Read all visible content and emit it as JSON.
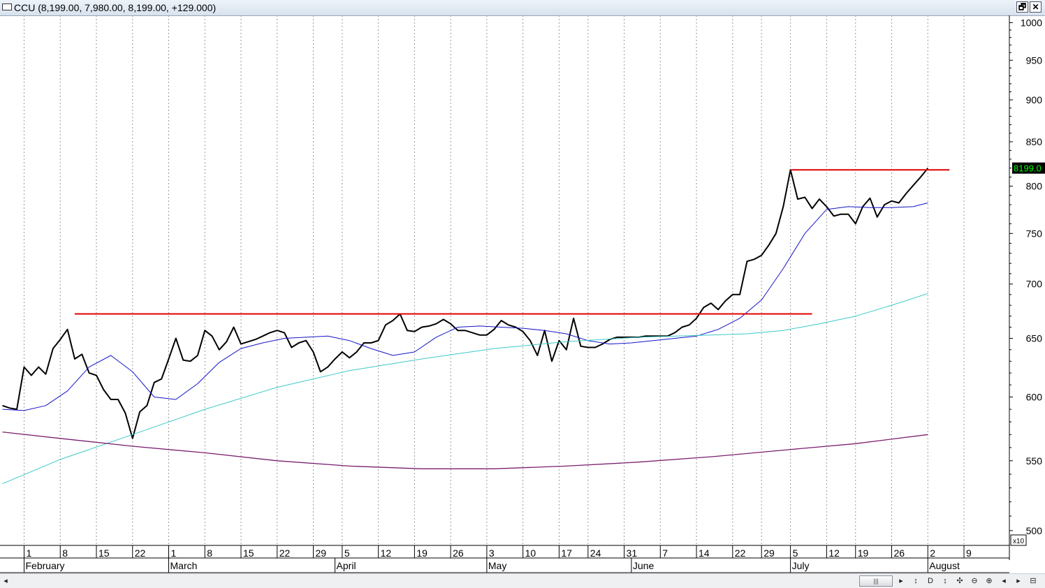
{
  "window": {
    "title": "CCU (8,199.00, 7,980.00, 8,199.00, +129.000)",
    "restore_label": "🗗",
    "close_label": "✕"
  },
  "price_label": "8199.0",
  "scale_multiplier": "x10",
  "toolbar": {
    "scroll_left": "◂",
    "thumb": "|||",
    "buttons": [
      "▸",
      "↕",
      "D",
      "↕",
      "✣",
      "⊖",
      "⊕",
      "◂",
      "▸",
      "⊟"
    ]
  },
  "colors": {
    "price": "#000000",
    "ma_short": "#1414c8",
    "ma_medium": "#3cc8c8",
    "ma_long": "#7a1f6e",
    "resistance": "#e00000",
    "price_label_bg": "#000000",
    "price_label_fg": "#00ff00"
  },
  "chart_data": {
    "type": "line",
    "title": "",
    "ylim": [
      490,
      1010
    ],
    "y_ticks": [
      500,
      550,
      600,
      650,
      700,
      750,
      800,
      850,
      900,
      950,
      1000
    ],
    "y_tick_labels": [
      "500",
      "550",
      "600",
      "650",
      "700",
      "750",
      "800",
      "850",
      "900",
      "950",
      "1000"
    ],
    "x_day_labels": [
      "1",
      "8",
      "15",
      "22",
      "1",
      "8",
      "15",
      "22",
      "29",
      "5",
      "12",
      "19",
      "26",
      "3",
      "10",
      "17",
      "24",
      "31",
      "7",
      "14",
      "22",
      "29",
      "5",
      "12",
      "19",
      "26",
      "2",
      "9"
    ],
    "x_day_index": [
      0,
      5,
      10,
      15,
      20,
      25,
      30,
      35,
      40,
      44,
      49,
      54,
      59,
      64,
      69,
      74,
      78,
      83,
      88,
      93,
      98,
      102,
      106,
      111,
      115,
      120,
      125,
      130
    ],
    "month_labels": [
      "February",
      "March",
      "April",
      "May",
      "June",
      "July",
      "August"
    ],
    "month_index": [
      0,
      20,
      43,
      64,
      84,
      106,
      125
    ],
    "x_index_range": [
      -3,
      136
    ],
    "series": [
      {
        "key": "price",
        "x": [
          -3,
          -2,
          -1,
          0,
          1,
          2,
          3,
          4,
          5,
          6,
          7,
          8,
          9,
          10,
          11,
          12,
          13,
          14,
          15,
          16,
          17,
          18,
          19,
          20,
          21,
          22,
          23,
          24,
          25,
          26,
          27,
          28,
          29,
          30,
          31,
          32,
          33,
          34,
          35,
          36,
          37,
          38,
          39,
          40,
          41,
          42,
          43,
          44,
          45,
          46,
          47,
          48,
          49,
          50,
          51,
          52,
          53,
          54,
          55,
          56,
          57,
          58,
          59,
          60,
          61,
          62,
          63,
          64,
          65,
          66,
          67,
          68,
          69,
          70,
          71,
          72,
          73,
          74,
          75,
          76,
          77,
          78,
          79,
          80,
          81,
          82,
          83,
          84,
          85,
          86,
          87,
          88,
          89,
          90,
          91,
          92,
          93,
          94,
          95,
          96,
          97,
          98,
          99,
          100,
          101,
          102,
          103,
          104,
          105,
          106,
          107,
          108,
          109,
          110,
          111,
          112,
          113,
          114,
          115,
          116,
          117,
          118,
          119,
          120,
          121,
          122,
          123,
          124,
          125
        ],
        "values": [
          593,
          591,
          590,
          625,
          618,
          625,
          619,
          641,
          649,
          658,
          632,
          636,
          620,
          618,
          606,
          598,
          598,
          587,
          567,
          588,
          593,
          612,
          615,
          632,
          650,
          631,
          630,
          635,
          657,
          652,
          640,
          647,
          660,
          645,
          647,
          649,
          652,
          655,
          657,
          655,
          642,
          646,
          648,
          638,
          621,
          625,
          632,
          638,
          633,
          638,
          646,
          646,
          648,
          662,
          666,
          672,
          657,
          656,
          660,
          661,
          663,
          667,
          663,
          657,
          657,
          655,
          653,
          653,
          658,
          666,
          662,
          660,
          656,
          648,
          635,
          657,
          630,
          648,
          640,
          668,
          643,
          642,
          642,
          645,
          649,
          651,
          651,
          651,
          651,
          652,
          652,
          652,
          652,
          655,
          660,
          662,
          668,
          678,
          682,
          676,
          684,
          690,
          690,
          722,
          724,
          728,
          738,
          750,
          778,
          818,
          786,
          788,
          776,
          786,
          778,
          768,
          770,
          770,
          760,
          778,
          787,
          767,
          780,
          784,
          782,
          792,
          801,
          810,
          820
        ]
      },
      {
        "key": "ma_short",
        "x": [
          -3,
          0,
          3,
          6,
          9,
          12,
          15,
          18,
          21,
          24,
          27,
          30,
          33,
          36,
          39,
          42,
          45,
          48,
          51,
          54,
          57,
          60,
          63,
          66,
          69,
          72,
          75,
          78,
          81,
          84,
          87,
          90,
          93,
          96,
          99,
          102,
          105,
          108,
          111,
          114,
          117,
          120,
          123,
          125
        ],
        "values": [
          590,
          589,
          593,
          605,
          625,
          635,
          621,
          600,
          598,
          611,
          629,
          641,
          646,
          650,
          651,
          652,
          648,
          641,
          635,
          638,
          651,
          660,
          661,
          660,
          659,
          657,
          654,
          648,
          645,
          646,
          648,
          650,
          652,
          658,
          668,
          685,
          715,
          750,
          775,
          778,
          777,
          777,
          778,
          782
        ]
      },
      {
        "key": "ma_medium",
        "x": [
          -3,
          5,
          15,
          25,
          35,
          45,
          55,
          65,
          75,
          85,
          95,
          100,
          105,
          110,
          115,
          120,
          125
        ],
        "values": [
          533,
          551,
          570,
          590,
          608,
          622,
          632,
          641,
          647,
          651,
          653,
          654,
          657,
          663,
          670,
          680,
          691
        ]
      },
      {
        "key": "ma_long",
        "x": [
          -3,
          5,
          15,
          25,
          35,
          45,
          55,
          65,
          75,
          85,
          95,
          105,
          115,
          125
        ],
        "values": [
          572,
          567,
          561,
          556,
          550,
          546,
          544,
          544,
          546,
          549,
          553,
          558,
          563,
          570
        ]
      }
    ],
    "resistance_lines": [
      {
        "x": [
          7,
          109
        ],
        "y": [
          672,
          672
        ]
      },
      {
        "x": [
          106,
          128
        ],
        "y": [
          818,
          818
        ]
      }
    ]
  }
}
